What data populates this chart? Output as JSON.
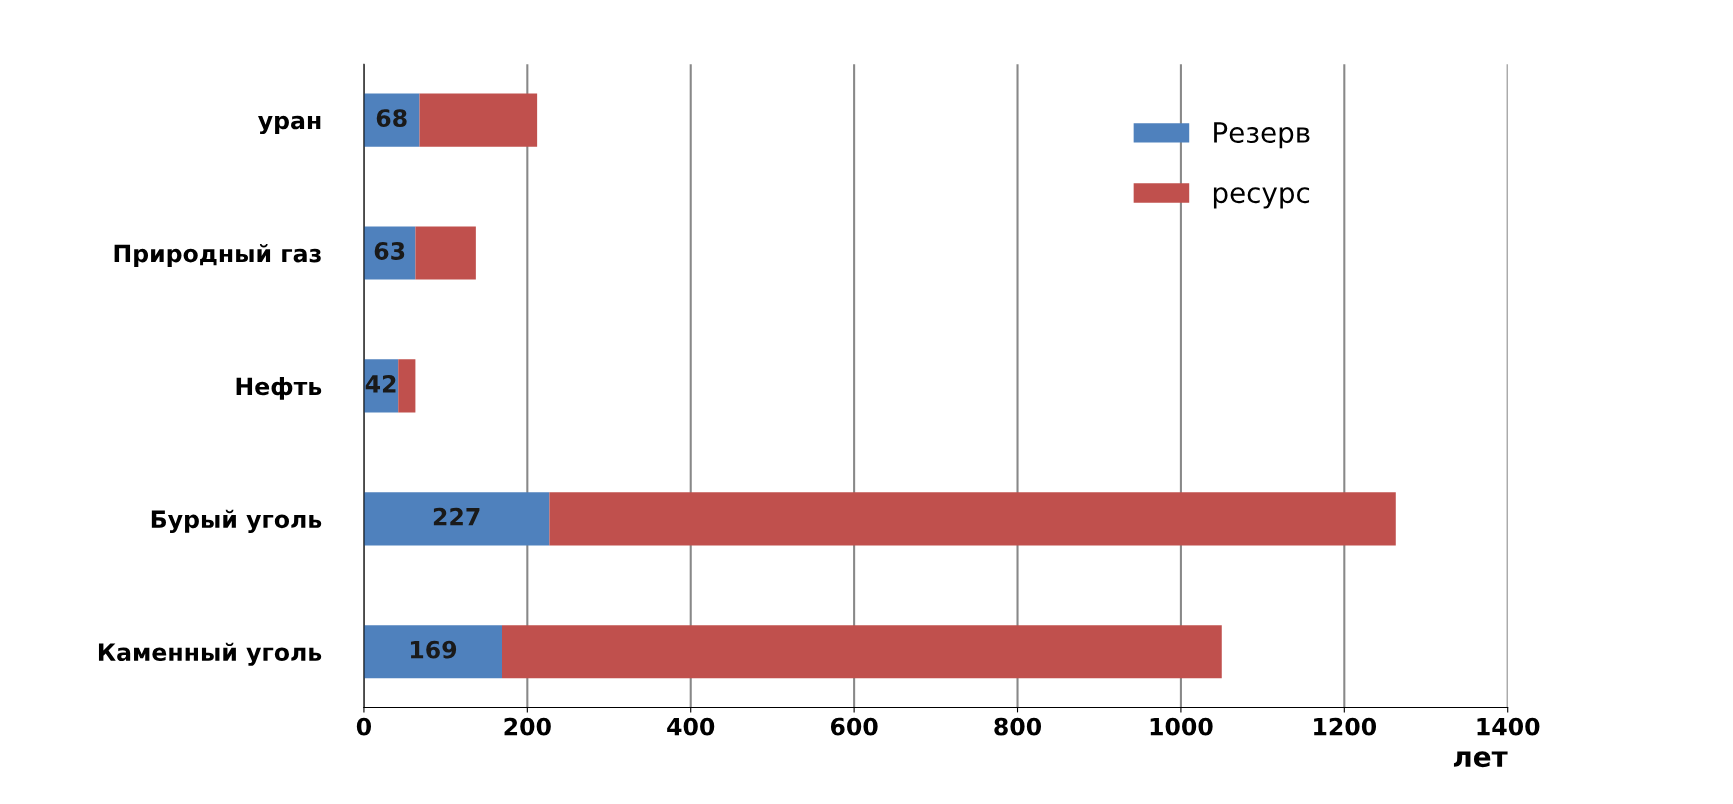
{
  "chart_data": {
    "type": "bar",
    "orientation": "horizontal",
    "stacked": true,
    "xlabel": "лет",
    "categories": [
      "уран",
      "Природный газ",
      "Нефть",
      "Бурый уголь",
      "Каменный уголь"
    ],
    "series": [
      {
        "name": "Резерв",
        "color": "#4f81bd",
        "values": [
          68,
          63,
          42,
          227,
          169
        ],
        "value_labels": [
          "68",
          "63",
          "42",
          "227",
          "169"
        ]
      },
      {
        "name": "ресурс",
        "color": "#c0504d",
        "values": [
          144,
          74,
          21,
          1036,
          881
        ]
      }
    ],
    "xlim": [
      0,
      1400
    ],
    "xticks": [
      0,
      200,
      400,
      600,
      800,
      1000,
      1200,
      1400
    ],
    "grid": "x",
    "legend": "top right"
  }
}
